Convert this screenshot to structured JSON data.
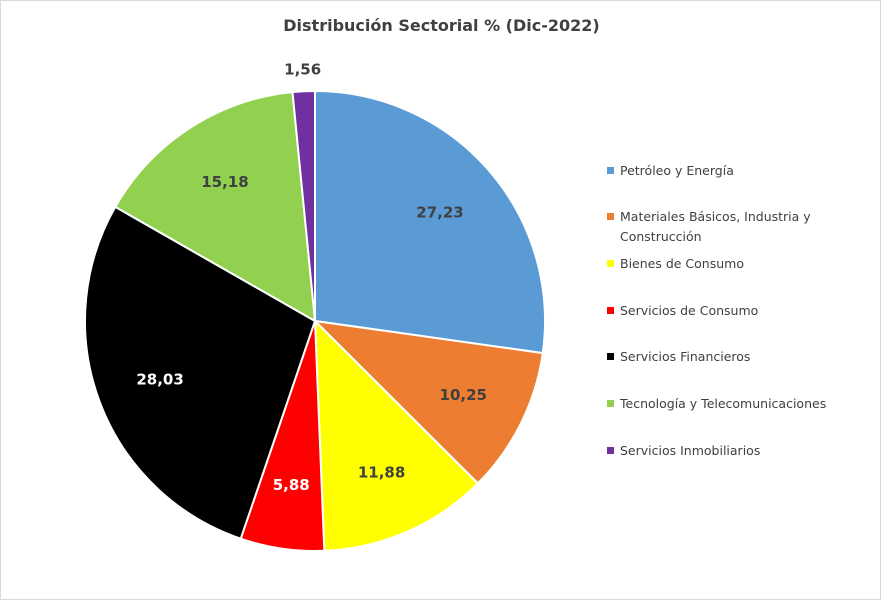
{
  "chart_data": {
    "type": "pie",
    "title": "Distribución  Sectorial % (Dic-2022)",
    "start_angle": "top",
    "direction": "clockwise",
    "legend_position": "right",
    "slices": [
      {
        "name": "Petróleo y Energía",
        "value": 27.23,
        "label": "27,23",
        "color": "#5B9BD5",
        "label_color": "#404040"
      },
      {
        "name": "Materiales Básicos, Industria y Construcción",
        "value": 10.25,
        "label": "10,25",
        "color": "#ED7D31",
        "label_color": "#404040"
      },
      {
        "name": "Bienes de Consumo",
        "value": 11.88,
        "label": "11,88",
        "color": "#FFFF00",
        "label_color": "#404040"
      },
      {
        "name": "Servicios de Consumo",
        "value": 5.88,
        "label": "5,88",
        "color": "#FF0000",
        "label_color": "#FFFFFF"
      },
      {
        "name": "Servicios Financieros",
        "value": 28.03,
        "label": "28,03",
        "color": "#000000",
        "label_color": "#FFFFFF"
      },
      {
        "name": "Tecnología y Telecomunicaciones",
        "value": 15.18,
        "label": "15,18",
        "color": "#92D050",
        "label_color": "#404040"
      },
      {
        "name": "Servicios Inmobiliarios",
        "value": 1.56,
        "label": "1,56",
        "color": "#7030A0",
        "label_color": "#404040"
      }
    ]
  }
}
